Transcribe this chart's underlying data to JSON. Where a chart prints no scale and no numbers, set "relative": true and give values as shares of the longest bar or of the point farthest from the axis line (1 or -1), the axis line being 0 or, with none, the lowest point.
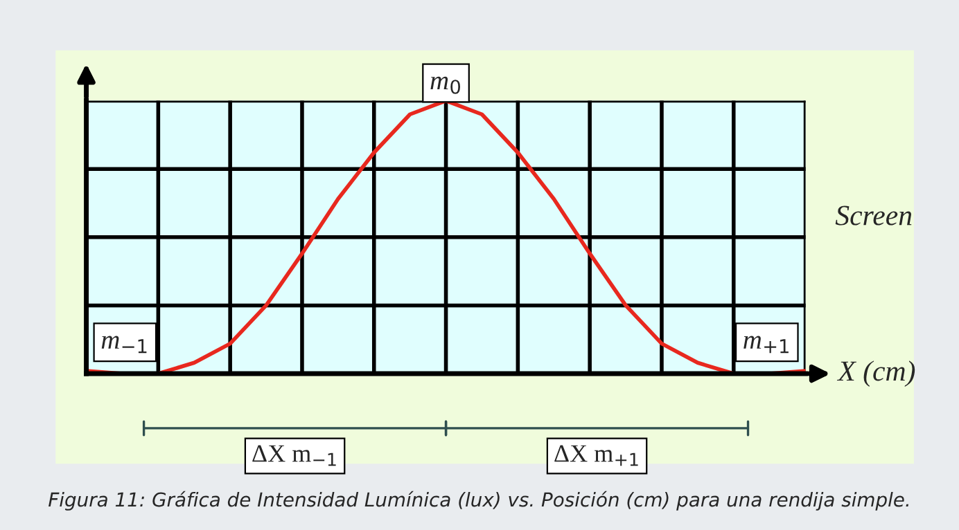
{
  "chart_data": {
    "type": "line",
    "relative": true,
    "xlabel": "X (cm)",
    "grid": true,
    "legend": false,
    "marker": "none",
    "line_style": "solid",
    "categories": [
      null,
      null,
      null,
      null,
      null,
      null,
      null,
      null,
      null,
      null,
      null,
      null,
      null,
      null,
      null,
      null,
      null,
      null,
      null,
      null,
      null
    ],
    "series": [
      {
        "color": "#e8281e",
        "values": [
          0.01,
          0,
          0,
          0.04,
          0.11,
          0.25,
          0.44,
          0.64,
          0.81,
          0.95,
          1,
          0.95,
          0.81,
          0.64,
          0.44,
          0.25,
          0.11,
          0.04,
          0,
          0,
          0.01
        ]
      }
    ],
    "annotations": [
      "m$_{0}$",
      "m$_{−1}$",
      "m$_{+1}$",
      "Screen",
      "ΔX m$_{−1}$",
      "ΔX m$_{+1}$",
      "Figura 11: Gráfica de Intensidad Lumínica (lux) vs. Posición (cm) para una rendija simple."
    ]
  }
}
